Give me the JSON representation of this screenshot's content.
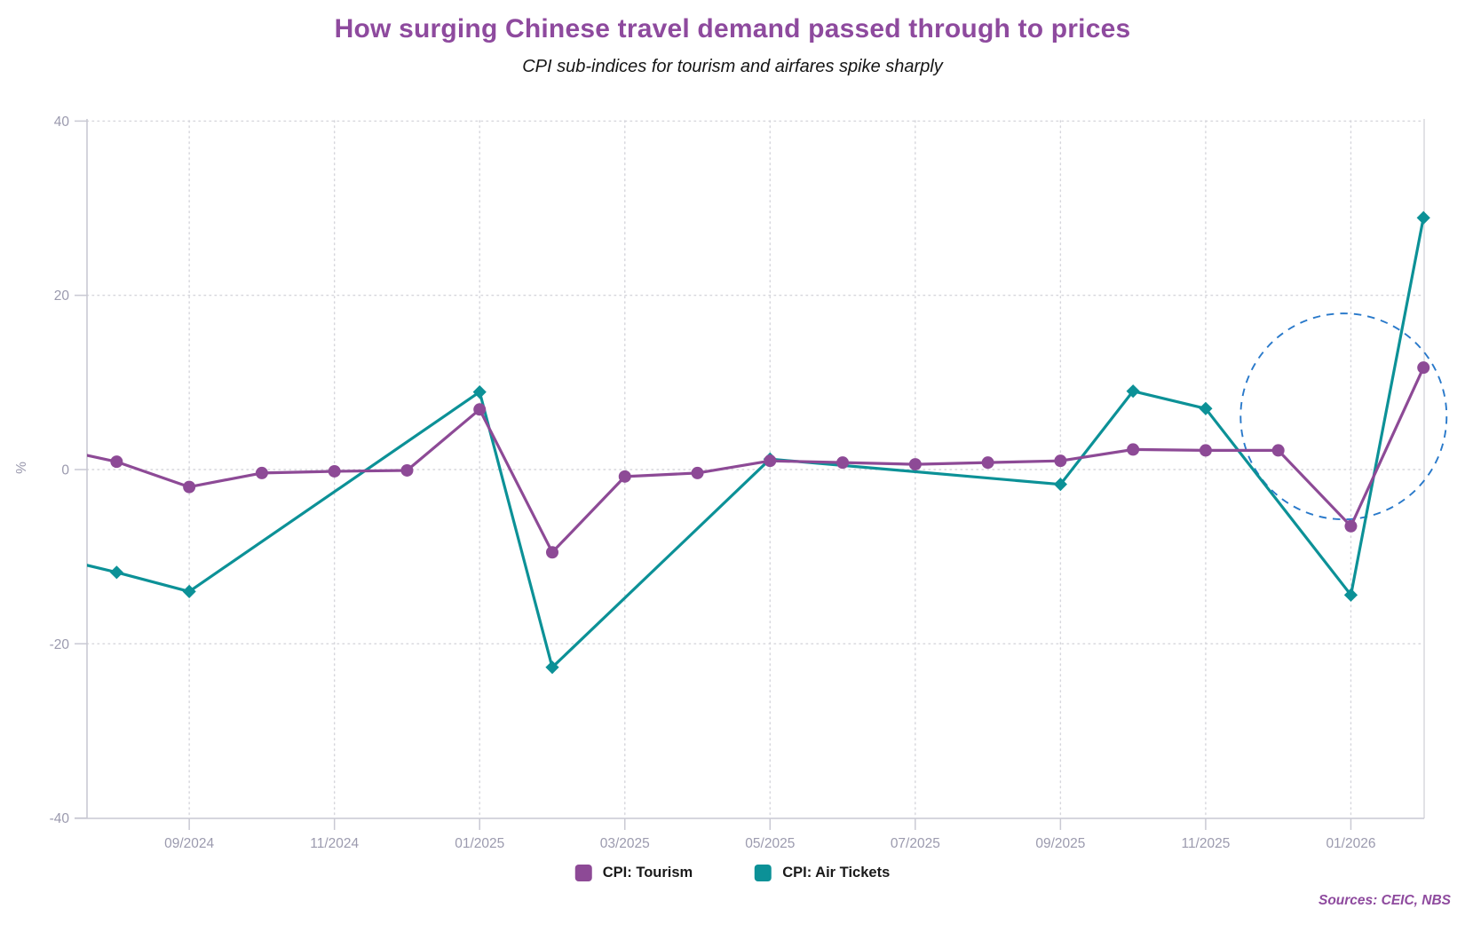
{
  "header": {
    "title": "How surging Chinese travel demand passed through to prices",
    "subtitle": "CPI sub-indices for tourism and airfares spike sharply"
  },
  "footer": {
    "source_note": "Sources: CEIC, NBS"
  },
  "colors": {
    "title": "#8e4a9e",
    "subtitle": "#151515",
    "tourism": "#8d4a96",
    "air_tickets": "#0c9197",
    "annotation_circle": "#2979ca",
    "axis_text": "#9b9aae",
    "gridline": "#d6d6dc",
    "spine": "#c9c9d3",
    "legend_text": "#1a1a1a",
    "background": "#ffffff"
  },
  "chart_data": {
    "type": "line",
    "title": "How surging Chinese travel demand passed through to prices",
    "subtitle": "CPI sub-indices for tourism and airfares spike sharply",
    "xlabel": "",
    "ylabel": "%",
    "ylim": [
      -40,
      40
    ],
    "yticks": [
      40,
      20,
      0,
      -20,
      -40
    ],
    "x_start_month": "07/2024",
    "x_end_month": "02/2026",
    "x_tick_months": [
      "09/2024",
      "11/2024",
      "01/2025",
      "03/2025",
      "05/2025",
      "07/2025",
      "09/2025",
      "11/2025",
      "01/2026"
    ],
    "grid": "dotted",
    "legend_position": "bottom",
    "series": [
      {
        "name": "CPI: Tourism",
        "color": "#8d4a96",
        "marker": "circle",
        "points": [
          {
            "month": "07/2024",
            "value": 2.7
          },
          {
            "month": "08/2024",
            "value": 0.9
          },
          {
            "month": "09/2024",
            "value": -2.0
          },
          {
            "month": "10/2024",
            "value": -0.4
          },
          {
            "month": "11/2024",
            "value": -0.2
          },
          {
            "month": "12/2024",
            "value": -0.1
          },
          {
            "month": "01/2025",
            "value": 6.9
          },
          {
            "month": "02/2025",
            "value": -9.5
          },
          {
            "month": "03/2025",
            "value": -0.8
          },
          {
            "month": "04/2025",
            "value": -0.4
          },
          {
            "month": "05/2025",
            "value": 1.0
          },
          {
            "month": "06/2025",
            "value": 0.8
          },
          {
            "month": "07/2025",
            "value": 0.6
          },
          {
            "month": "08/2025",
            "value": 0.8
          },
          {
            "month": "09/2025",
            "value": 1.0
          },
          {
            "month": "10/2025",
            "value": 2.3
          },
          {
            "month": "11/2025",
            "value": 2.2
          },
          {
            "month": "12/2025",
            "value": 2.2
          },
          {
            "month": "01/2026",
            "value": -6.5
          },
          {
            "month": "02/2026",
            "value": 11.7
          }
        ]
      },
      {
        "name": "CPI: Air Tickets",
        "color": "#0c9197",
        "marker": "diamond",
        "points": [
          {
            "month": "07/2024",
            "value": -9.8
          },
          {
            "month": "08/2024",
            "value": -11.8
          },
          {
            "month": "09/2024",
            "value": -14.0
          },
          {
            "month": "01/2025",
            "value": 8.9
          },
          {
            "month": "02/2025",
            "value": -22.7
          },
          {
            "month": "05/2025",
            "value": 1.2
          },
          {
            "month": "09/2025",
            "value": -1.7
          },
          {
            "month": "10/2025",
            "value": 9.0
          },
          {
            "month": "11/2025",
            "value": 7.0
          },
          {
            "month": "01/2026",
            "value": -14.4
          },
          {
            "month": "02/2026",
            "value": 28.9
          }
        ]
      }
    ],
    "annotation": {
      "shape": "dashed-circle",
      "center_month_index": 17.9,
      "center_value": 6.1,
      "radius_px": 116,
      "color": "#2979ca"
    },
    "legend": [
      {
        "label": "CPI: Tourism",
        "color": "#8d4a96"
      },
      {
        "label": "CPI: Air Tickets",
        "color": "#0c9197"
      }
    ]
  }
}
